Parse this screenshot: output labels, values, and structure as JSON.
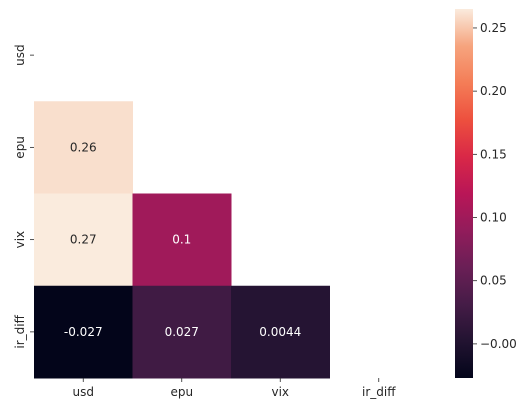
{
  "chart_data": {
    "type": "heatmap",
    "title": "",
    "xlabel": "",
    "ylabel": "",
    "mask": "upper-triangle-including-diagonal",
    "x_categories": [
      "usd",
      "epu",
      "vix",
      "ir_diff"
    ],
    "y_categories": [
      "usd",
      "epu",
      "vix",
      "ir_diff"
    ],
    "cells": [
      {
        "row": "epu",
        "col": "usd",
        "value": 0.26,
        "label": "0.26"
      },
      {
        "row": "vix",
        "col": "usd",
        "value": 0.27,
        "label": "0.27"
      },
      {
        "row": "vix",
        "col": "epu",
        "value": 0.1,
        "label": "0.1"
      },
      {
        "row": "ir_diff",
        "col": "usd",
        "value": -0.027,
        "label": "-0.027"
      },
      {
        "row": "ir_diff",
        "col": "epu",
        "value": 0.027,
        "label": "0.027"
      },
      {
        "row": "ir_diff",
        "col": "vix",
        "value": 0.0044,
        "label": "0.0044"
      }
    ],
    "colorbar": {
      "colormap": "rocket",
      "vmin": -0.027,
      "vmax": 0.265,
      "ticks": [
        -0.0,
        0.05,
        0.1,
        0.15,
        0.2,
        0.25
      ],
      "tick_labels": [
        "−0.00",
        "0.05",
        "0.10",
        "0.15",
        "0.20",
        "0.25"
      ]
    }
  }
}
